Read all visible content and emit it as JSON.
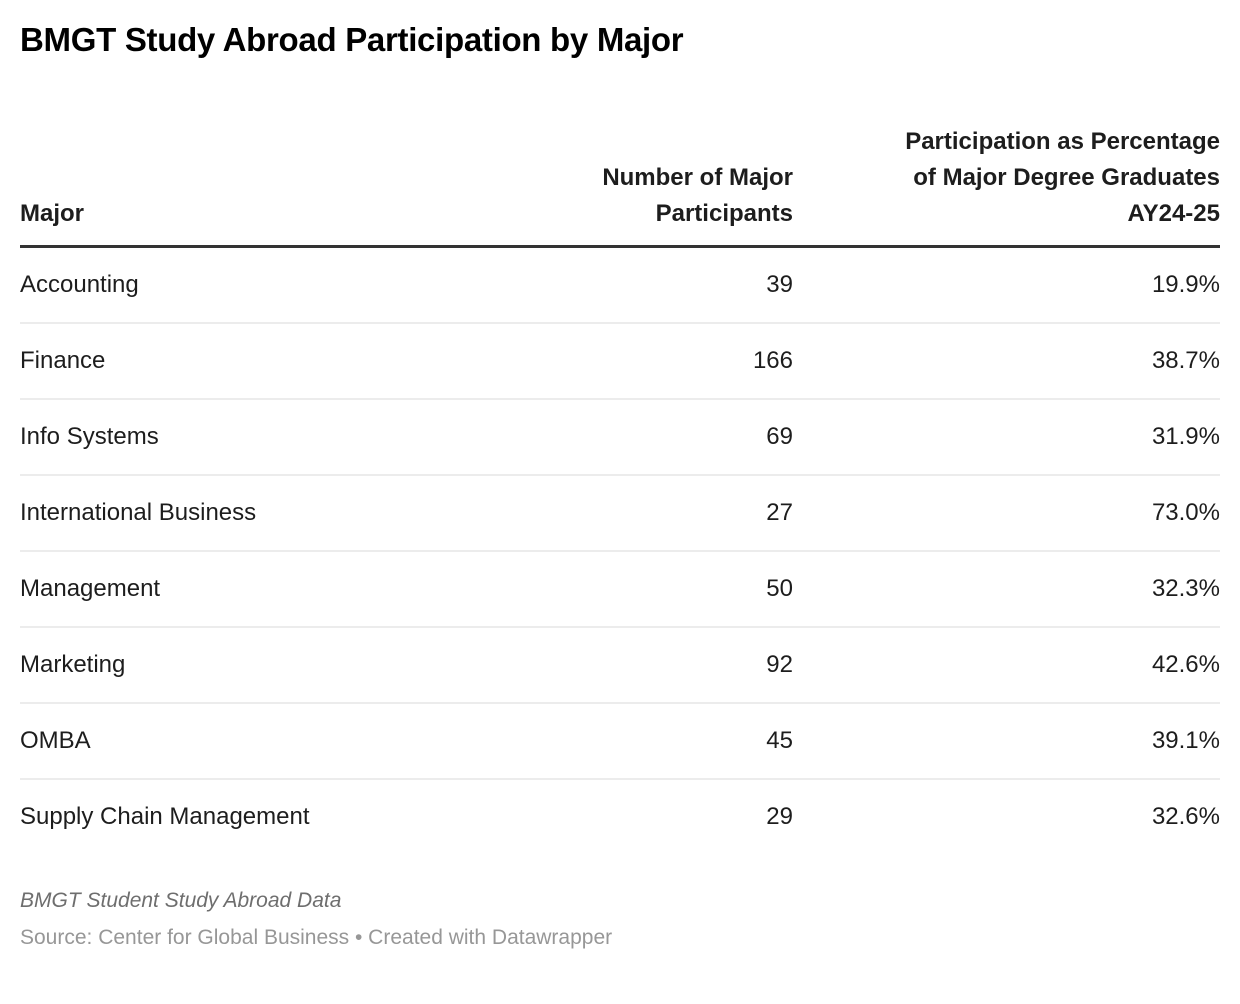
{
  "title": "BMGT Study Abroad Participation by Major",
  "table": {
    "columns": [
      {
        "label": "Major",
        "align": "left"
      },
      {
        "label": "Number of Major Participants",
        "align": "right"
      },
      {
        "label": "Participation as Percentage of Major Degree Graduates AY24-25",
        "align": "right"
      }
    ],
    "rows": [
      {
        "major": "Accounting",
        "participants": "39",
        "percentage": "19.9%"
      },
      {
        "major": "Finance",
        "participants": "166",
        "percentage": "38.7%"
      },
      {
        "major": "Info Systems",
        "participants": "69",
        "percentage": "31.9%"
      },
      {
        "major": "International Business",
        "participants": "27",
        "percentage": "73.0%"
      },
      {
        "major": "Management",
        "participants": "50",
        "percentage": "32.3%"
      },
      {
        "major": "Marketing",
        "participants": "92",
        "percentage": "42.6%"
      },
      {
        "major": "OMBA",
        "participants": "45",
        "percentage": "39.1%"
      },
      {
        "major": "Supply Chain Management",
        "participants": "29",
        "percentage": "32.6%"
      }
    ]
  },
  "footer": {
    "footnote": "BMGT Student Study Abroad Data",
    "source": "Source: Center for Global Business • Created with Datawrapper"
  },
  "colors": {
    "background": "#ffffff",
    "title_text": "#000000",
    "body_text": "#1d1d1d",
    "header_rule": "#333333",
    "row_divider": "#ececec",
    "footnote_text": "#6e6e6e",
    "source_text": "#979797"
  },
  "chart_data": {
    "type": "table",
    "title": "BMGT Study Abroad Participation by Major",
    "columns": [
      "Major",
      "Number of Major Participants",
      "Participation as Percentage of Major Degree Graduates AY24-25"
    ],
    "rows": [
      [
        "Accounting",
        39,
        "19.9%"
      ],
      [
        "Finance",
        166,
        "38.7%"
      ],
      [
        "Info Systems",
        69,
        "31.9%"
      ],
      [
        "International Business",
        27,
        "73.0%"
      ],
      [
        "Management",
        50,
        "32.3%"
      ],
      [
        "Marketing",
        92,
        "42.6%"
      ],
      [
        "OMBA",
        45,
        "39.1%"
      ],
      [
        "Supply Chain Management",
        29,
        "32.6%"
      ]
    ],
    "footnote": "BMGT Student Study Abroad Data",
    "source": "Source: Center for Global Business • Created with Datawrapper",
    "layout_hints": {
      "column_alignments": [
        "left",
        "right",
        "right"
      ],
      "header_rule": "thick dark line under header row",
      "row_dividers": "thin light gray lines, none after last row"
    }
  }
}
